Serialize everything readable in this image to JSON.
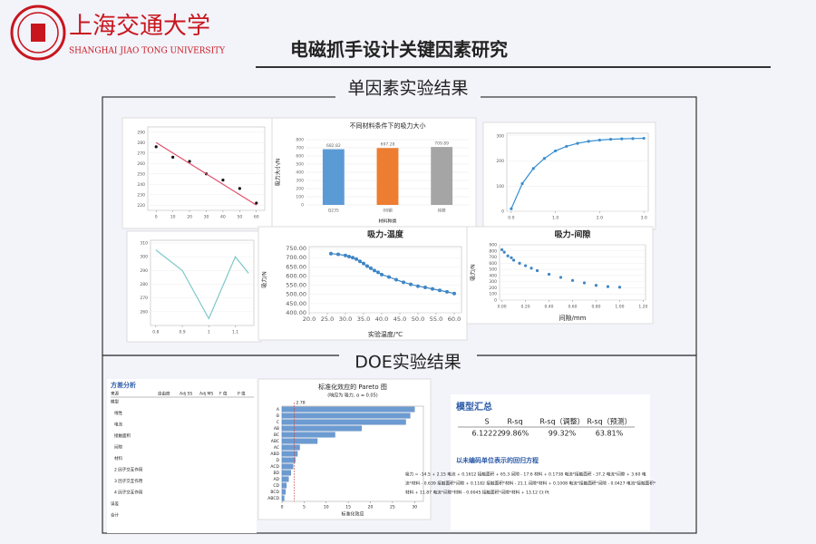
{
  "header": {
    "university_cn": "上海交通大学",
    "university_en": "SHANGHAI JIAO TONG UNIVERSITY",
    "title": "电磁抓手设计关键因素研究"
  },
  "sections": [
    {
      "label": "单因素实验结果"
    },
    {
      "label": "DOE实验结果"
    }
  ],
  "chart_data": [
    {
      "type": "line",
      "x": [
        0,
        10,
        20,
        30,
        40,
        50,
        60
      ],
      "series": [
        {
          "color": "#111111",
          "style": "markers",
          "values": [
            276,
            266,
            262,
            250,
            244,
            236,
            222
          ]
        },
        {
          "color": "#e0506a",
          "style": "line",
          "values": [
            280,
            270,
            260,
            250,
            240,
            230,
            220
          ]
        }
      ],
      "xlim": [
        -5,
        65
      ],
      "ylim": [
        215,
        295
      ],
      "xticks": [
        0,
        10,
        20,
        30,
        40,
        50,
        60
      ],
      "yticks": [
        220,
        230,
        240,
        250,
        260,
        270,
        280,
        290
      ]
    },
    {
      "type": "bar",
      "title": "不同材料条件下的吸力大小",
      "categories": [
        "Q235",
        "08钢",
        "纯铁"
      ],
      "values": [
        682.82,
        697.28,
        709.89
      ],
      "colors": [
        "#5b9bd5",
        "#ed7d31",
        "#a5a5a5"
      ],
      "ylim": [
        0,
        800
      ],
      "yticks": [
        0,
        100,
        200,
        300,
        400,
        500,
        600,
        700,
        800
      ],
      "xlabel": "材料种类",
      "ylabel": "吸力大小/N"
    },
    {
      "type": "line",
      "x": [
        0,
        0.25,
        0.5,
        0.75,
        1,
        1.25,
        1.5,
        1.75,
        2,
        2.25,
        2.5,
        2.75,
        3
      ],
      "series": [
        {
          "color": "#3a8fd0",
          "style": "both",
          "values": [
            10,
            110,
            170,
            210,
            240,
            258,
            270,
            278,
            283,
            286,
            288,
            289,
            290
          ]
        }
      ],
      "xlim": [
        -0.1,
        3.1
      ],
      "ylim": [
        0,
        310
      ],
      "xticks": [
        {
          "value": 0,
          "label": "0.0"
        },
        {
          "value": 1,
          "label": "1.0"
        },
        {
          "value": 2,
          "label": "2.0"
        },
        {
          "value": 3,
          "label": "3.0"
        }
      ],
      "yticks": [
        0,
        100,
        200,
        300
      ]
    },
    {
      "type": "line",
      "x": [
        0.8,
        0.9,
        1.0,
        1.1,
        1.15
      ],
      "series": [
        {
          "color": "#7fc8c8",
          "style": "line",
          "values": [
            305,
            290,
            255,
            300,
            288
          ]
        }
      ],
      "xlim": [
        0.78,
        1.17
      ],
      "ylim": [
        250,
        312
      ],
      "xticks": [
        0.8,
        0.9,
        1,
        1.1
      ],
      "yticks": [
        260,
        270,
        280,
        290,
        300,
        310
      ]
    },
    {
      "type": "line",
      "title": "吸力-温度",
      "x": [
        26,
        28,
        30,
        31,
        32,
        33,
        34,
        35,
        36,
        37,
        38,
        39,
        40,
        42,
        44,
        46,
        48,
        50,
        52,
        54,
        56,
        58,
        60
      ],
      "series": [
        {
          "color": "#3f86c6",
          "style": "both",
          "values": [
            722,
            718,
            712,
            706,
            700,
            692,
            680,
            668,
            654,
            642,
            630,
            620,
            608,
            595,
            580,
            566,
            555,
            545,
            538,
            530,
            522,
            514,
            505
          ]
        }
      ],
      "xlim": [
        20,
        62
      ],
      "ylim": [
        400,
        760
      ],
      "xticks": [
        {
          "value": 20,
          "label": "20.0"
        },
        {
          "value": 25,
          "label": "25.0"
        },
        {
          "value": 30,
          "label": "30.0"
        },
        {
          "value": 35,
          "label": "35.0"
        },
        {
          "value": 40,
          "label": "40.0"
        },
        {
          "value": 45,
          "label": "45.0"
        },
        {
          "value": 50,
          "label": "50.0"
        },
        {
          "value": 55,
          "label": "55.0"
        },
        {
          "value": 60,
          "label": "60.0"
        }
      ],
      "yticks": [
        {
          "value": 400,
          "label": "400.00"
        },
        {
          "value": 450,
          "label": "450.00"
        },
        {
          "value": 500,
          "label": "500.00"
        },
        {
          "value": 550,
          "label": "550.00"
        },
        {
          "value": 600,
          "label": "600.00"
        },
        {
          "value": 650,
          "label": "650.00"
        },
        {
          "value": 700,
          "label": "700.00"
        },
        {
          "value": 750,
          "label": "750.00"
        }
      ],
      "xlabel": "实验温度/℃",
      "ylabel": "吸力/N"
    },
    {
      "type": "line",
      "title": "吸力-间隙",
      "x": [
        0,
        0.02,
        0.05,
        0.08,
        0.1,
        0.15,
        0.2,
        0.25,
        0.3,
        0.4,
        0.5,
        0.6,
        0.7,
        0.8,
        0.9,
        1.0
      ],
      "series": [
        {
          "color": "#3f86c6",
          "style": "markers",
          "values": [
            820,
            780,
            720,
            690,
            650,
            600,
            560,
            520,
            480,
            420,
            370,
            320,
            280,
            240,
            220,
            210
          ]
        }
      ],
      "xlim": [
        -0.02,
        1.22
      ],
      "ylim": [
        0,
        900
      ],
      "xticks": [
        {
          "value": 0,
          "label": "0.00"
        },
        {
          "value": 0.2,
          "label": "0.20"
        },
        {
          "value": 0.4,
          "label": "0.40"
        },
        {
          "value": 0.6,
          "label": "0.60"
        },
        {
          "value": 0.8,
          "label": "0.80"
        },
        {
          "value": 1,
          "label": "1.00"
        },
        {
          "value": 1.2,
          "label": "1.20"
        }
      ],
      "yticks": [
        0,
        100,
        200,
        300,
        400,
        500,
        600,
        700,
        800,
        900
      ],
      "xlabel": "间隙/mm",
      "ylabel": "吸力/N"
    },
    {
      "type": "hbar",
      "title": "标准化效应的 Pareto 图",
      "subtitle": "(响应为 吸力, α = 0.05)",
      "categories": [
        "A",
        "B",
        "C",
        "AB",
        "BC",
        "ABC",
        "AC",
        "ABD",
        "D",
        "ACD",
        "BD",
        "AD",
        "CD",
        "BCD",
        "ABCD"
      ],
      "values": [
        30,
        29,
        28,
        18,
        12,
        8,
        4,
        3.5,
        3,
        2.5,
        2,
        1.5,
        1,
        0.8,
        0.5
      ],
      "color": "#6c9bd2",
      "ref": 2.78,
      "xlim": [
        0,
        32
      ],
      "xticks": [
        0,
        5,
        10,
        15,
        20,
        25,
        30
      ],
      "xlabel": "标准化效应"
    }
  ],
  "anova": {
    "title": "方差分析",
    "headers": [
      "来源",
      "自由度",
      "Adj SS",
      "Adj MS",
      "F 值",
      "P 值"
    ],
    "rows": [
      "模型",
      "线性",
      "电流",
      "接触面积",
      "间隙",
      "材料",
      "2 因子交互作用",
      "3 因子交互作用",
      "4 因子交互作用",
      "误差",
      "合计"
    ]
  },
  "model_summary": {
    "title": "模型汇总",
    "headers": [
      "S",
      "R-sq",
      "R-sq（调整）",
      "R-sq（预测）"
    ],
    "row": [
      "6.12222",
      "99.86%",
      "99.32%",
      "63.81%"
    ]
  },
  "regression": {
    "title": "以未编码单位表示的回归方程",
    "lines": [
      "吸力 = -14.5 + 2.15 电流 + 0.1612 接触面积 + 65.3 间隙 - 17.6 材料 + 0.1738 电流*接触面积 - 37.2 电流*间隙 + 3.60 电",
      "流*材料 - 0.639 接触面积*间隙 + 0.1182 接触面积*材料 - 21.1 间隙*材料 + 0.1008 电流*接触面积*间隙 - 0.0427 电流*接触面积*",
      "材料 + 11.87 电流*间隙*材料 - 0.0045 接触面积*间隙*材料 + 13.12 Ct Pt"
    ]
  }
}
